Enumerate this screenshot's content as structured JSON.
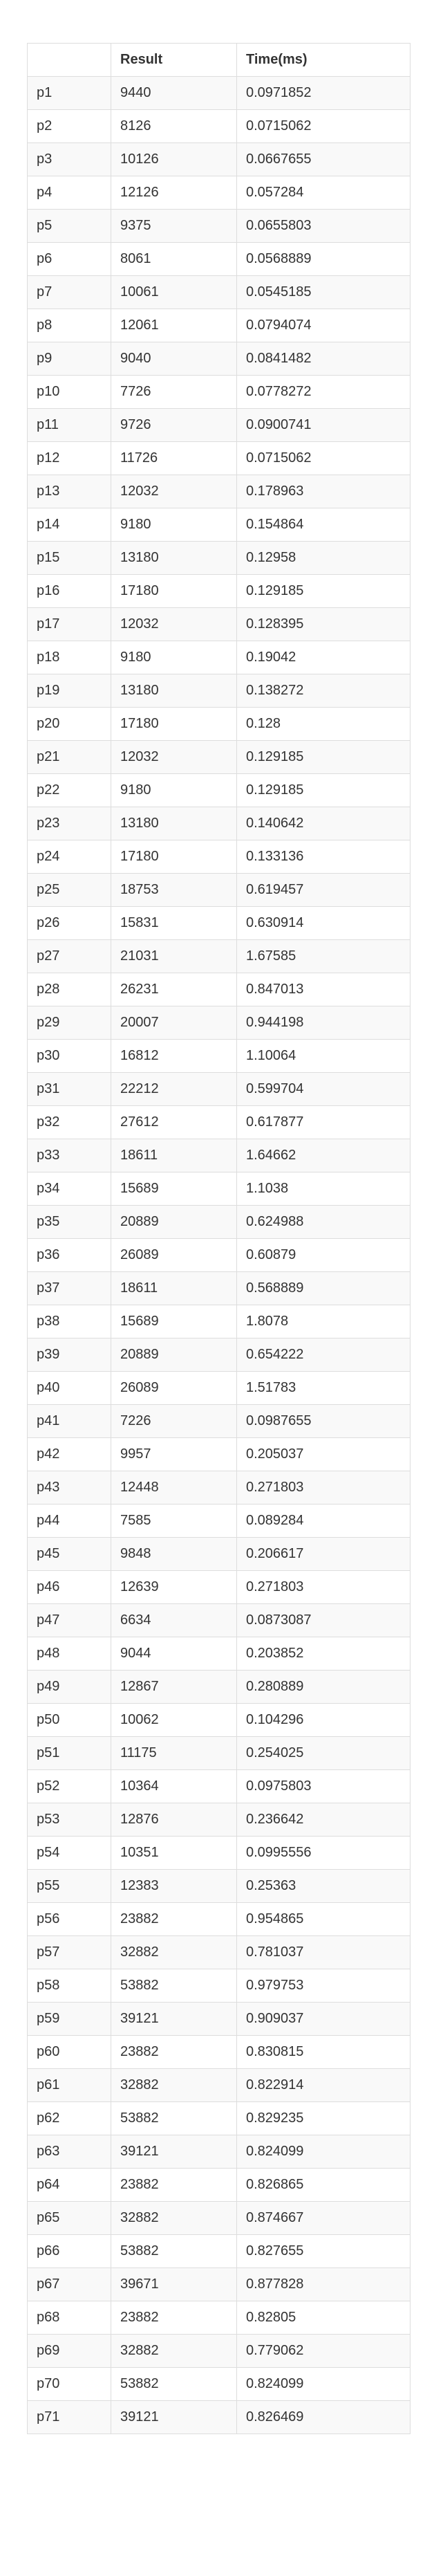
{
  "table": {
    "headers": [
      "",
      "Result",
      "Time(ms)"
    ],
    "rows": [
      [
        "p1",
        "9440",
        "0.0971852"
      ],
      [
        "p2",
        "8126",
        "0.0715062"
      ],
      [
        "p3",
        "10126",
        "0.0667655"
      ],
      [
        "p4",
        "12126",
        "0.057284"
      ],
      [
        "p5",
        "9375",
        "0.0655803"
      ],
      [
        "p6",
        "8061",
        "0.0568889"
      ],
      [
        "p7",
        "10061",
        "0.0545185"
      ],
      [
        "p8",
        "12061",
        "0.0794074"
      ],
      [
        "p9",
        "9040",
        "0.0841482"
      ],
      [
        "p10",
        "7726",
        "0.0778272"
      ],
      [
        "p11",
        "9726",
        "0.0900741"
      ],
      [
        "p12",
        "11726",
        "0.0715062"
      ],
      [
        "p13",
        "12032",
        "0.178963"
      ],
      [
        "p14",
        "9180",
        "0.154864"
      ],
      [
        "p15",
        "13180",
        "0.12958"
      ],
      [
        "p16",
        "17180",
        "0.129185"
      ],
      [
        "p17",
        "12032",
        "0.128395"
      ],
      [
        "p18",
        "9180",
        "0.19042"
      ],
      [
        "p19",
        "13180",
        "0.138272"
      ],
      [
        "p20",
        "17180",
        "0.128"
      ],
      [
        "p21",
        "12032",
        "0.129185"
      ],
      [
        "p22",
        "9180",
        "0.129185"
      ],
      [
        "p23",
        "13180",
        "0.140642"
      ],
      [
        "p24",
        "17180",
        "0.133136"
      ],
      [
        "p25",
        "18753",
        "0.619457"
      ],
      [
        "p26",
        "15831",
        "0.630914"
      ],
      [
        "p27",
        "21031",
        "1.67585"
      ],
      [
        "p28",
        "26231",
        "0.847013"
      ],
      [
        "p29",
        "20007",
        "0.944198"
      ],
      [
        "p30",
        "16812",
        "1.10064"
      ],
      [
        "p31",
        "22212",
        "0.599704"
      ],
      [
        "p32",
        "27612",
        "0.617877"
      ],
      [
        "p33",
        "18611",
        "1.64662"
      ],
      [
        "p34",
        "15689",
        "1.1038"
      ],
      [
        "p35",
        "20889",
        "0.624988"
      ],
      [
        "p36",
        "26089",
        "0.60879"
      ],
      [
        "p37",
        "18611",
        "0.568889"
      ],
      [
        "p38",
        "15689",
        "1.8078"
      ],
      [
        "p39",
        "20889",
        "0.654222"
      ],
      [
        "p40",
        "26089",
        "1.51783"
      ],
      [
        "p41",
        "7226",
        "0.0987655"
      ],
      [
        "p42",
        "9957",
        "0.205037"
      ],
      [
        "p43",
        "12448",
        "0.271803"
      ],
      [
        "p44",
        "7585",
        "0.089284"
      ],
      [
        "p45",
        "9848",
        "0.206617"
      ],
      [
        "p46",
        "12639",
        "0.271803"
      ],
      [
        "p47",
        "6634",
        "0.0873087"
      ],
      [
        "p48",
        "9044",
        "0.203852"
      ],
      [
        "p49",
        "12867",
        "0.280889"
      ],
      [
        "p50",
        "10062",
        "0.104296"
      ],
      [
        "p51",
        "11175",
        "0.254025"
      ],
      [
        "p52",
        "10364",
        "0.0975803"
      ],
      [
        "p53",
        "12876",
        "0.236642"
      ],
      [
        "p54",
        "10351",
        "0.0995556"
      ],
      [
        "p55",
        "12383",
        "0.25363"
      ],
      [
        "p56",
        "23882",
        "0.954865"
      ],
      [
        "p57",
        "32882",
        "0.781037"
      ],
      [
        "p58",
        "53882",
        "0.979753"
      ],
      [
        "p59",
        "39121",
        "0.909037"
      ],
      [
        "p60",
        "23882",
        "0.830815"
      ],
      [
        "p61",
        "32882",
        "0.822914"
      ],
      [
        "p62",
        "53882",
        "0.829235"
      ],
      [
        "p63",
        "39121",
        "0.824099"
      ],
      [
        "p64",
        "23882",
        "0.826865"
      ],
      [
        "p65",
        "32882",
        "0.874667"
      ],
      [
        "p66",
        "53882",
        "0.827655"
      ],
      [
        "p67",
        "39671",
        "0.877828"
      ],
      [
        "p68",
        "23882",
        "0.82805"
      ],
      [
        "p69",
        "32882",
        "0.779062"
      ],
      [
        "p70",
        "53882",
        "0.824099"
      ],
      [
        "p71",
        "39121",
        "0.826469"
      ]
    ]
  }
}
